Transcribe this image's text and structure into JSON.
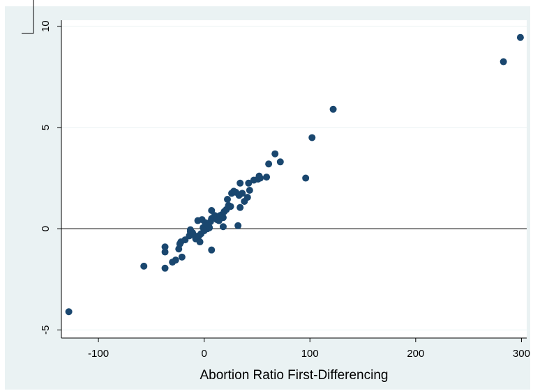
{
  "chart_data": {
    "type": "scatter",
    "title": "",
    "xlabel": "Abortion Ratio First-Differencing",
    "ylabel": "",
    "xlim": [
      -135,
      305
    ],
    "ylim": [
      -5.4,
      10.3
    ],
    "xticks": [
      -100,
      0,
      100,
      200,
      300
    ],
    "xtick_labels": [
      "-100",
      "0",
      "100",
      "200",
      "300"
    ],
    "yticks": [
      -5,
      0,
      5,
      10
    ],
    "ytick_labels": [
      "-5",
      "0",
      "5",
      "10"
    ],
    "grid": "horizontal",
    "reference_line_y": 0,
    "point_color": "#1a476f",
    "background_color": "#eaf2f3",
    "points": [
      [
        -128,
        -4.1
      ],
      [
        -57,
        -1.85
      ],
      [
        -37,
        -0.9
      ],
      [
        -37,
        -1.15
      ],
      [
        -37,
        -1.95
      ],
      [
        -30,
        -1.65
      ],
      [
        -27,
        -1.55
      ],
      [
        -24,
        -1.0
      ],
      [
        -23,
        -0.75
      ],
      [
        -22,
        -0.65
      ],
      [
        -21,
        -1.4
      ],
      [
        -18,
        -0.55
      ],
      [
        -14,
        -0.35
      ],
      [
        -13,
        -0.15
      ],
      [
        -13,
        -0.05
      ],
      [
        -11,
        -0.2
      ],
      [
        -10,
        -0.3
      ],
      [
        -8,
        -0.5
      ],
      [
        -7,
        -0.45
      ],
      [
        -6,
        0.4
      ],
      [
        -5,
        -0.35
      ],
      [
        -4,
        -0.65
      ],
      [
        -3,
        -0.25
      ],
      [
        -2,
        0.45
      ],
      [
        -1,
        0.05
      ],
      [
        0,
        -0.1
      ],
      [
        1,
        0.3
      ],
      [
        2,
        0.15
      ],
      [
        3,
        0.0
      ],
      [
        4,
        0.15
      ],
      [
        5,
        0.05
      ],
      [
        6,
        0.35
      ],
      [
        7,
        0.5
      ],
      [
        7,
        0.9
      ],
      [
        7,
        -1.05
      ],
      [
        9,
        0.55
      ],
      [
        10,
        0.65
      ],
      [
        12,
        0.45
      ],
      [
        14,
        0.4
      ],
      [
        15,
        0.65
      ],
      [
        17,
        0.7
      ],
      [
        18,
        0.55
      ],
      [
        18,
        0.1
      ],
      [
        19,
        0.85
      ],
      [
        21,
        0.95
      ],
      [
        22,
        1.45
      ],
      [
        23,
        1.15
      ],
      [
        25,
        1.1
      ],
      [
        26,
        1.75
      ],
      [
        28,
        1.85
      ],
      [
        30,
        1.8
      ],
      [
        32,
        0.15
      ],
      [
        33,
        1.65
      ],
      [
        34,
        2.25
      ],
      [
        34,
        1.05
      ],
      [
        36,
        1.75
      ],
      [
        38,
        1.35
      ],
      [
        41,
        1.55
      ],
      [
        42,
        2.25
      ],
      [
        43,
        1.9
      ],
      [
        47,
        2.4
      ],
      [
        51,
        2.45
      ],
      [
        52,
        2.6
      ],
      [
        53,
        2.5
      ],
      [
        59,
        2.55
      ],
      [
        61,
        3.2
      ],
      [
        67,
        3.7
      ],
      [
        72,
        3.3
      ],
      [
        96,
        2.5
      ],
      [
        102,
        4.5
      ],
      [
        122,
        5.9
      ],
      [
        283,
        8.25
      ],
      [
        299,
        9.45
      ]
    ]
  }
}
